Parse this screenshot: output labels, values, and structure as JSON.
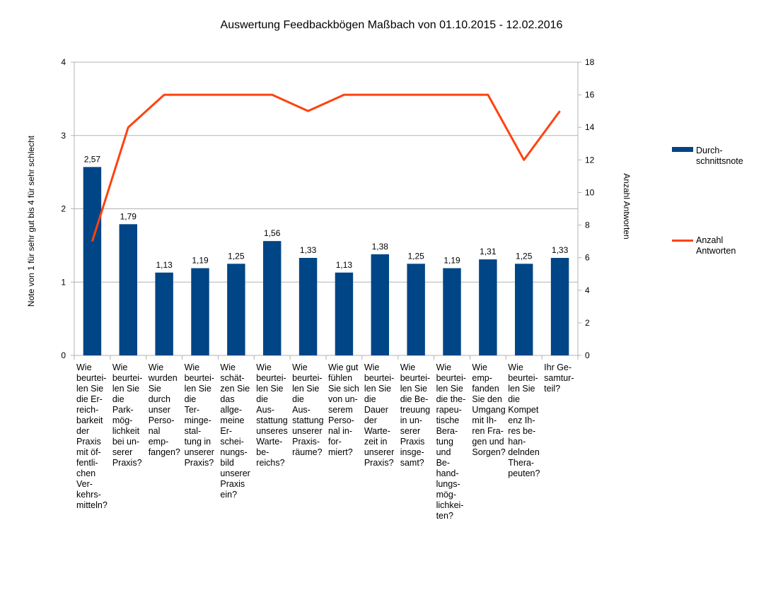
{
  "chart_data": {
    "type": "bar+line",
    "title": "Auswertung Feedbackbögen Maßbach von 01.10.2015 - 12.02.2016",
    "ylabel": "Note von 1 für sehr gut bis 4 für sehr schlecht",
    "y2label": "Anzahl Antworten",
    "ylim": [
      0,
      4
    ],
    "y2lim": [
      0,
      18
    ],
    "yticks": [
      "0",
      "1",
      "2",
      "3",
      "4"
    ],
    "y2ticks": [
      "0",
      "2",
      "4",
      "6",
      "8",
      "10",
      "12",
      "14",
      "16",
      "18"
    ],
    "grid": true,
    "legend_position": "right",
    "categories": [
      "Wie\nbeurtei-\nlen Sie\ndie Er-\nreich-\nbarkeit\nder\nPraxis\nmit öf-\nfentli-\nchen\nVer-\nkehrs-\nmitteln?",
      "Wie\nbeurtei-\nlen Sie\ndie\nPark-\nmög-\nlichkeit\nbei un-\nserer\nPraxis?",
      "Wie\nwurden\nSie\ndurch\nunser\nPerso-\nnal\nemp-\nfangen?",
      "Wie\nbeurtei-\nlen Sie\ndie\nTer-\nminge-\nstal-\ntung in\nunserer\nPraxis?",
      "Wie\nschät-\nzen Sie\ndas\nallge-\nmeine\nEr-\nschei-\nnungs-\nbild\nunserer\nPraxis\nein?",
      "Wie\nbeurtei-\nlen Sie\ndie\nAus-\nstattung\nunseres\nWarte-\nbe-\nreichs?",
      "Wie\nbeurtei-\nlen Sie\ndie\nAus-\nstattung\nunserer\nPraxis-\nräume?",
      "Wie gut\nfühlen\nSie sich\nvon un-\nserem\nPerso-\nnal in-\nfor-\nmiert?",
      "Wie\nbeurtei-\nlen Sie\ndie\nDauer\nder\nWarte-\nzeit in\nunserer\nPraxis?",
      "Wie\nbeurtei-\nlen Sie\ndie Be-\ntreuung\nin un-\nserer\nPraxis\ninsge-\nsamt?",
      "Wie\nbeurtei-\nlen Sie\ndie the-\nrapeu-\ntische\nBera-\ntung\nund\nBe-\nhand-\nlungs-\nmög-\nlichkei-\nten?",
      "Wie\nemp-\nfanden\nSie den\nUmgang\nmit Ih-\nren Fra-\ngen und\nSorgen?",
      "Wie\nbeurtei-\nlen Sie\ndie\nKompet\nenz Ih-\nres be-\nhan-\ndelnden\nThera-\npeuten?",
      "Ihr Ge-\nsamtur-\nteil?"
    ],
    "series": [
      {
        "name": "Durch-\nschnittsnote",
        "type": "bar",
        "axis": "left",
        "color": "#004586",
        "values": [
          2.57,
          1.79,
          1.13,
          1.19,
          1.25,
          1.56,
          1.33,
          1.13,
          1.38,
          1.25,
          1.19,
          1.31,
          1.25,
          1.33
        ],
        "labels": [
          "2,57",
          "1,79",
          "1,13",
          "1,19",
          "1,25",
          "1,56",
          "1,33",
          "1,13",
          "1,38",
          "1,25",
          "1,19",
          "1,31",
          "1,25",
          "1,33"
        ]
      },
      {
        "name": "Anzahl\nAntworten",
        "type": "line",
        "axis": "right",
        "color": "#ff420e",
        "values": [
          7,
          14,
          16,
          16,
          16,
          16,
          15,
          16,
          16,
          16,
          16,
          16,
          12,
          15
        ]
      }
    ]
  }
}
